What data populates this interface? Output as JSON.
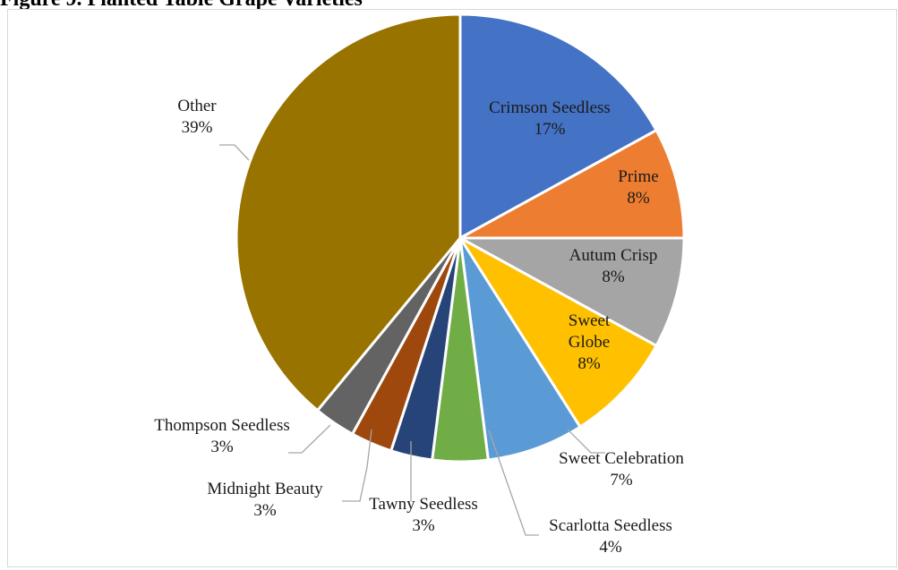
{
  "title": "Figure 9. Planted Table Grape Varieties",
  "chart_data": {
    "type": "pie",
    "legend": "none",
    "slices": [
      {
        "label": "Crimson Seedless",
        "value": 17,
        "pct": "17%",
        "color": "#4472C4",
        "text_color": "#1a1a1a"
      },
      {
        "label": "Prime",
        "value": 8,
        "pct": "8%",
        "color": "#ED7D31",
        "text_color": "#1a1a1a"
      },
      {
        "label": "Autum Crisp",
        "value": 8,
        "pct": "8%",
        "color": "#A5A5A5",
        "text_color": "#1a1a1a"
      },
      {
        "label": "Sweet Globe",
        "value": 8,
        "pct": "8%",
        "color": "#FFC000",
        "text_color": "#1a1a1a"
      },
      {
        "label": "Sweet Celebration",
        "value": 7,
        "pct": "7%",
        "color": "#5B9BD5",
        "text_color": "#1a1a1a"
      },
      {
        "label": "Scarlotta Seedless",
        "value": 4,
        "pct": "4%",
        "color": "#70AD47",
        "text_color": "#1a1a1a"
      },
      {
        "label": "Tawny Seedless",
        "value": 3,
        "pct": "3%",
        "color": "#264478",
        "text_color": "#1a1a1a"
      },
      {
        "label": "Midnight Beauty",
        "value": 3,
        "pct": "3%",
        "color": "#9E480E",
        "text_color": "#1a1a1a"
      },
      {
        "label": "Thompson Seedless",
        "value": 3,
        "pct": "3%",
        "color": "#636363",
        "text_color": "#1a1a1a"
      },
      {
        "label": "Other",
        "value": 39,
        "pct": "39%",
        "color": "#997300",
        "text_color": "#1a1a1a"
      }
    ]
  }
}
